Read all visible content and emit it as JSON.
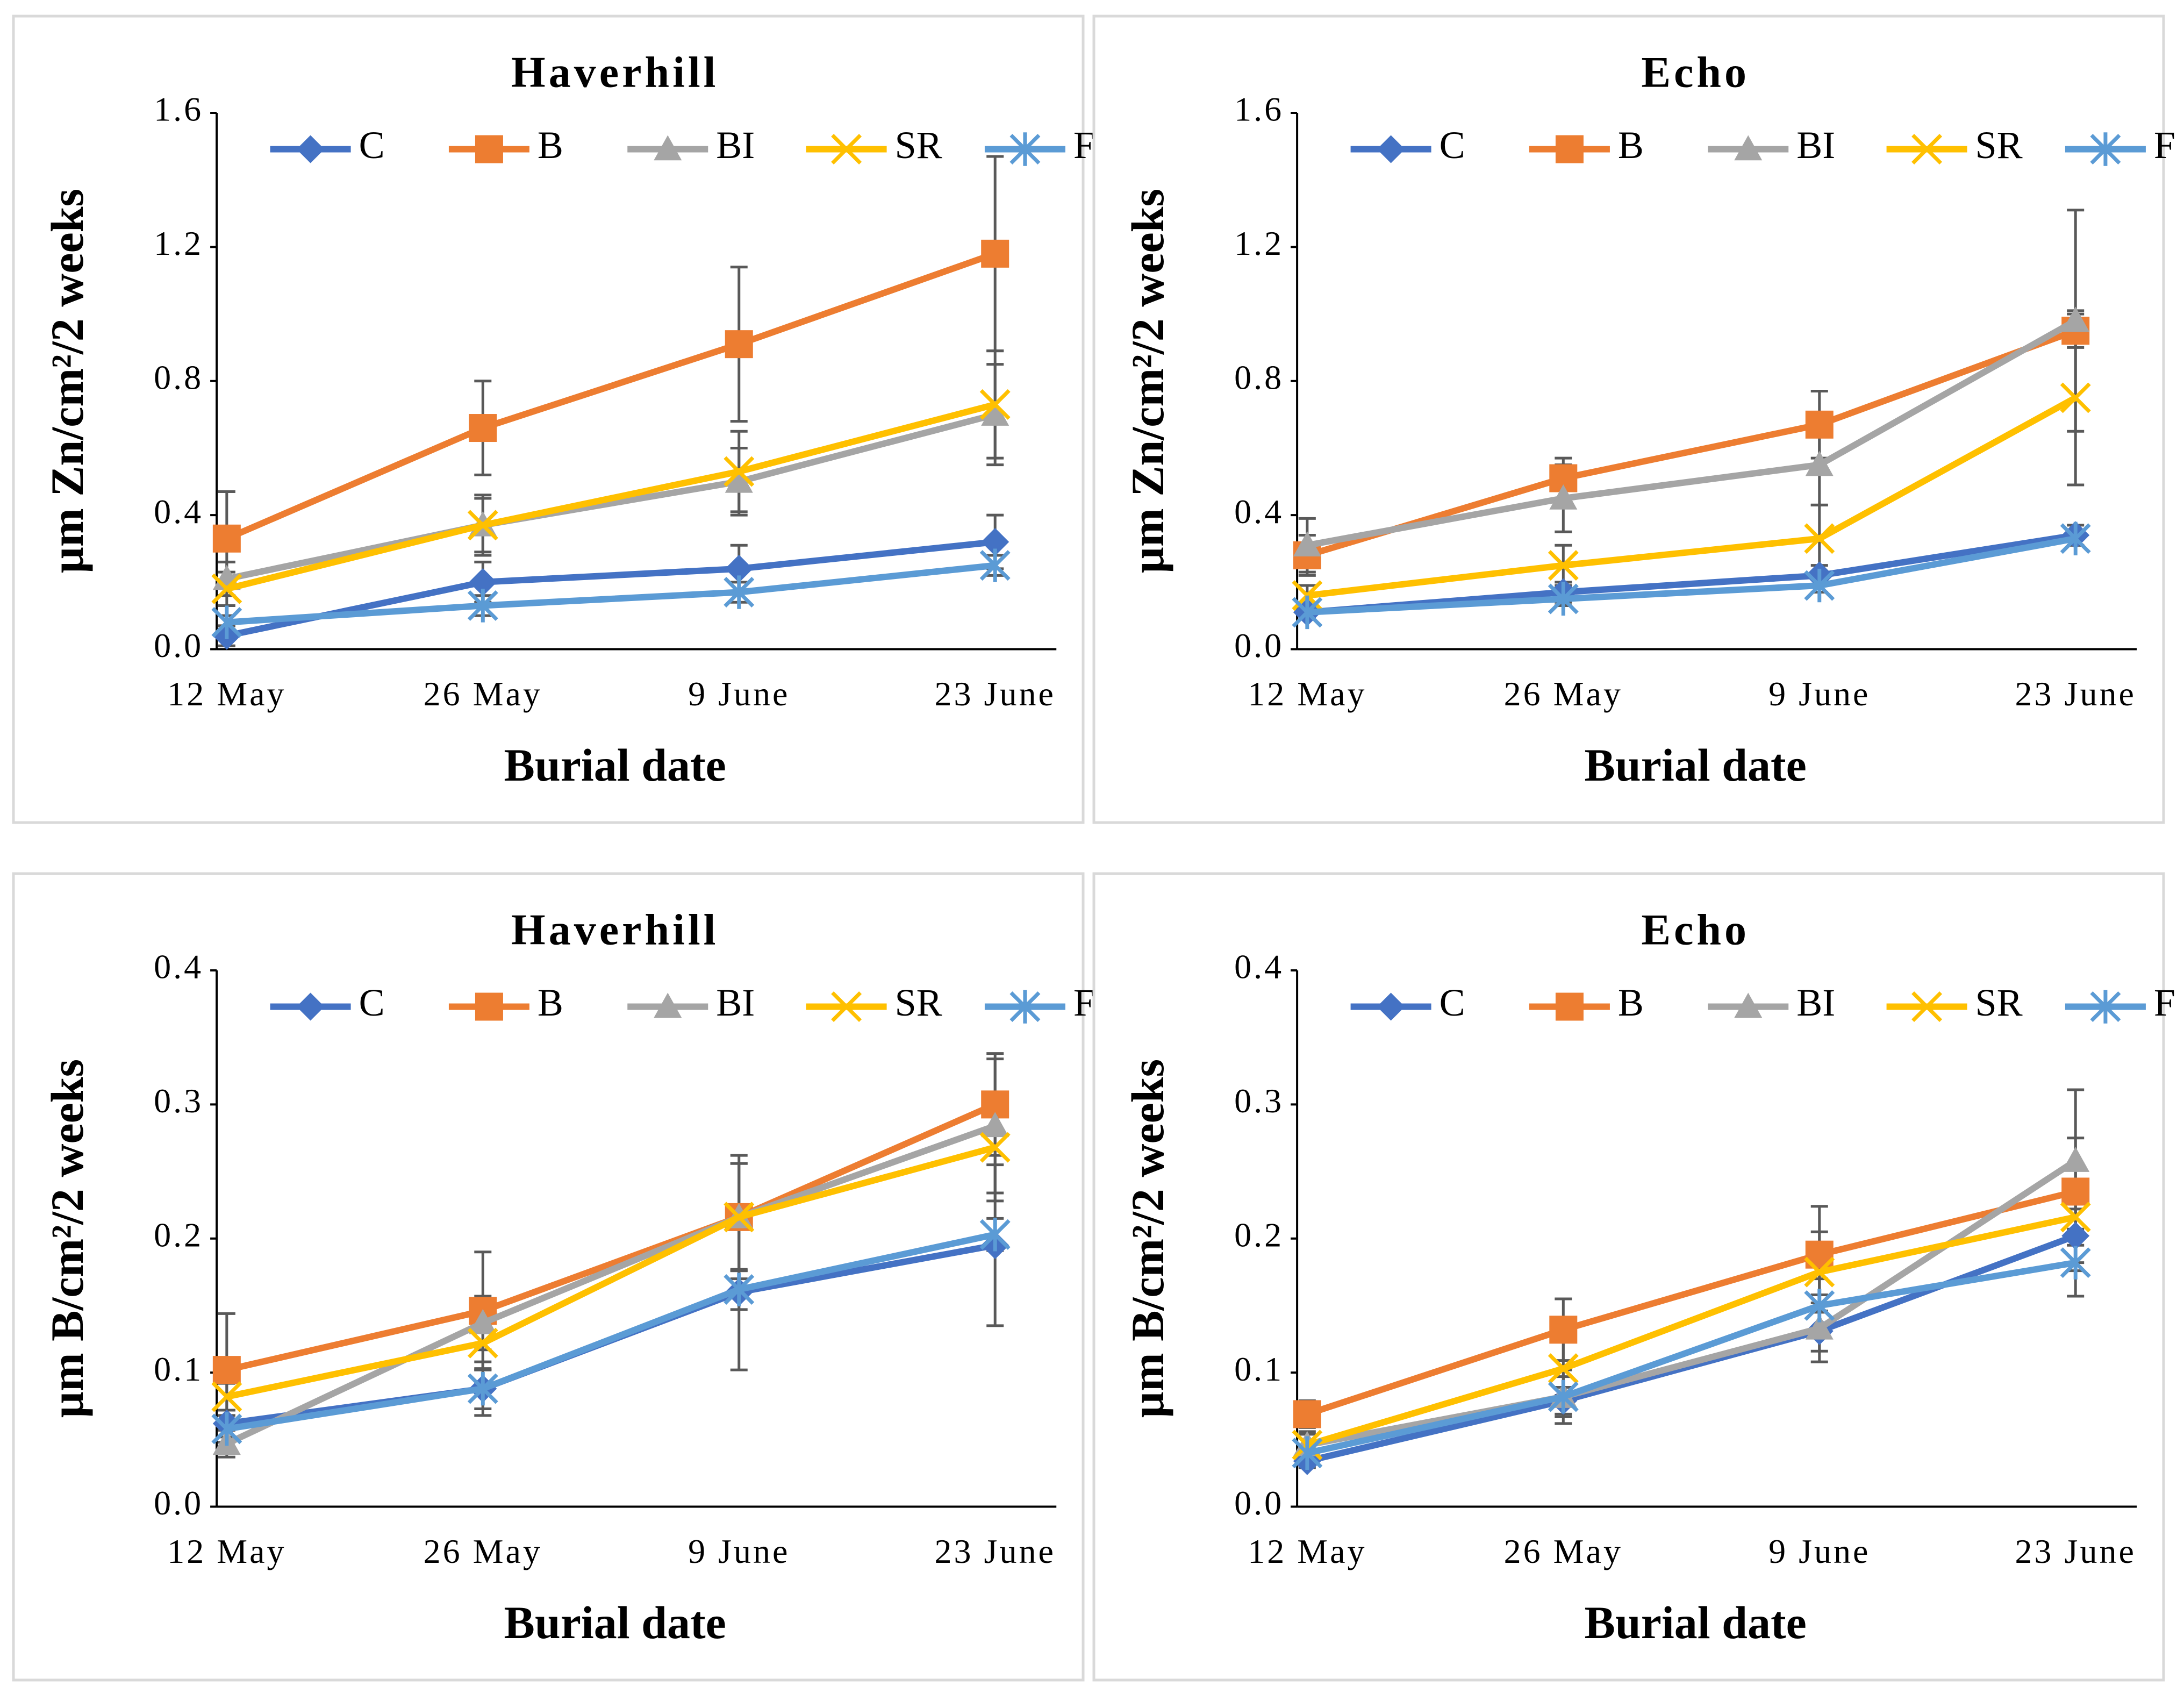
{
  "chart_data": [
    {
      "type": "line",
      "title": "Haverhill",
      "x_label": "Burial date",
      "y_label": "µm Zn/cm²/2 weeks",
      "categories": [
        "12 May",
        "26 May",
        "9 June",
        "23 June"
      ],
      "ylim": [
        0,
        1.6
      ],
      "yticks": [
        {
          "value": 0,
          "label": "0.0"
        },
        0.4,
        0.8,
        1.2,
        1.6
      ],
      "series": [
        {
          "name": "C",
          "color": "#4472c4",
          "marker": "diamond",
          "values": [
            0.04,
            0.2,
            0.24,
            0.32
          ],
          "errors": [
            0.03,
            0.06,
            0.07,
            0.08
          ]
        },
        {
          "name": "B",
          "color": "#ed7d31",
          "marker": "square",
          "values": [
            0.33,
            0.66,
            0.91,
            1.18
          ],
          "errors": [
            0.14,
            0.14,
            0.23,
            0.29
          ]
        },
        {
          "name": "BI",
          "color": "#a5a5a5",
          "marker": "triangle",
          "values": [
            0.21,
            0.37,
            0.5,
            0.7
          ],
          "errors": [
            0.05,
            0.08,
            0.1,
            0.15
          ]
        },
        {
          "name": "SR",
          "color": "#ffc000",
          "marker": "x",
          "values": [
            0.18,
            0.37,
            0.53,
            0.73
          ],
          "errors": [
            0.05,
            0.09,
            0.12,
            0.16
          ]
        },
        {
          "name": "F",
          "color": "#5b9bd5",
          "marker": "asterisk",
          "values": [
            0.08,
            0.13,
            0.17,
            0.25
          ],
          "errors": [
            0.02,
            0.03,
            0.03,
            0.03
          ]
        }
      ]
    },
    {
      "type": "line",
      "title": "Echo",
      "x_label": "Burial date",
      "y_label": "µm Zn/cm²/2 weeks",
      "categories": [
        "12 May",
        "26 May",
        "9 June",
        "23 June"
      ],
      "ylim": [
        0,
        1.6
      ],
      "yticks": [
        {
          "value": 0,
          "label": "0.0"
        },
        0.4,
        0.8,
        1.2,
        1.6
      ],
      "series": [
        {
          "name": "C",
          "color": "#4472c4",
          "marker": "diamond",
          "values": [
            0.11,
            0.17,
            0.22,
            0.34
          ],
          "errors": [
            0.02,
            0.03,
            0.03,
            0.03
          ]
        },
        {
          "name": "B",
          "color": "#ed7d31",
          "marker": "square",
          "values": [
            0.28,
            0.51,
            0.67,
            0.95
          ],
          "errors": [
            0.06,
            0.06,
            0.1,
            0.05
          ]
        },
        {
          "name": "BI",
          "color": "#a5a5a5",
          "marker": "triangle",
          "values": [
            0.31,
            0.45,
            0.55,
            0.98
          ],
          "errors": [
            0.08,
            0.1,
            0.12,
            0.33
          ]
        },
        {
          "name": "SR",
          "color": "#ffc000",
          "marker": "x",
          "values": [
            0.16,
            0.25,
            0.33,
            0.75
          ],
          "errors": [
            0.03,
            0.06,
            0.1,
            0.26
          ]
        },
        {
          "name": "F",
          "color": "#5b9bd5",
          "marker": "asterisk",
          "values": [
            0.11,
            0.15,
            0.19,
            0.33
          ],
          "errors": [
            0.02,
            0.02,
            0.02,
            0.02
          ]
        }
      ]
    },
    {
      "type": "line",
      "title": "Haverhill",
      "x_label": "Burial date",
      "y_label": "µm B/cm²/2 weeks",
      "categories": [
        "12 May",
        "26 May",
        "9 June",
        "23 June"
      ],
      "ylim": [
        0,
        0.4
      ],
      "yticks": [
        {
          "value": 0,
          "label": "0.0"
        },
        0.1,
        0.2,
        0.3,
        0.4
      ],
      "series": [
        {
          "name": "C",
          "color": "#4472c4",
          "marker": "diamond",
          "values": [
            0.062,
            0.088,
            0.16,
            0.195
          ],
          "errors": [
            0.01,
            0.02,
            0.058,
            0.06
          ]
        },
        {
          "name": "B",
          "color": "#ed7d31",
          "marker": "square",
          "values": [
            0.102,
            0.146,
            0.216,
            0.3
          ],
          "errors": [
            0.042,
            0.044,
            0.046,
            0.038
          ]
        },
        {
          "name": "BI",
          "color": "#a5a5a5",
          "marker": "triangle",
          "values": [
            0.047,
            0.137,
            0.216,
            0.284
          ],
          "errors": [
            0.01,
            0.02,
            0.04,
            0.05
          ]
        },
        {
          "name": "SR",
          "color": "#ffc000",
          "marker": "x",
          "values": [
            0.082,
            0.122,
            0.216,
            0.268
          ],
          "errors": [
            0.01,
            0.02,
            0.04,
            0.04
          ]
        },
        {
          "name": "F",
          "color": "#5b9bd5",
          "marker": "asterisk",
          "values": [
            0.058,
            0.088,
            0.162,
            0.203
          ],
          "errors": [
            0.01,
            0.015,
            0.015,
            0.012
          ]
        }
      ]
    },
    {
      "type": "line",
      "title": "Echo",
      "x_label": "Burial date",
      "y_label": "µm B/cm²/2 weeks",
      "categories": [
        "12 May",
        "26 May",
        "9 June",
        "23 June"
      ],
      "ylim": [
        0,
        0.4
      ],
      "yticks": [
        {
          "value": 0,
          "label": "0.0"
        },
        0.1,
        0.2,
        0.3,
        0.4
      ],
      "series": [
        {
          "name": "C",
          "color": "#4472c4",
          "marker": "diamond",
          "values": [
            0.034,
            0.079,
            0.131,
            0.202
          ],
          "errors": [
            0.005,
            0.01,
            0.015,
            0.02
          ]
        },
        {
          "name": "B",
          "color": "#ed7d31",
          "marker": "square",
          "values": [
            0.069,
            0.132,
            0.188,
            0.235
          ],
          "errors": [
            0.01,
            0.023,
            0.036,
            0.04
          ]
        },
        {
          "name": "BI",
          "color": "#a5a5a5",
          "marker": "triangle",
          "values": [
            0.046,
            0.082,
            0.133,
            0.258
          ],
          "errors": [
            0.01,
            0.02,
            0.025,
            0.053
          ]
        },
        {
          "name": "SR",
          "color": "#ffc000",
          "marker": "x",
          "values": [
            0.046,
            0.103,
            0.175,
            0.216
          ],
          "errors": [
            0.008,
            0.02,
            0.03,
            0.04
          ]
        },
        {
          "name": "F",
          "color": "#5b9bd5",
          "marker": "asterisk",
          "values": [
            0.04,
            0.082,
            0.15,
            0.182
          ],
          "errors": [
            0.006,
            0.015,
            0.02,
            0.025
          ]
        }
      ]
    }
  ]
}
